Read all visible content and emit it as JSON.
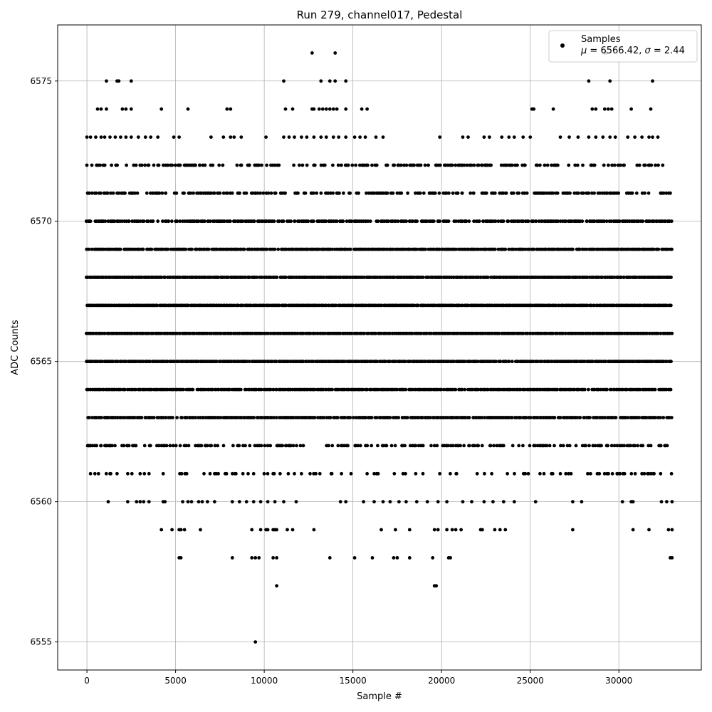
{
  "chart_data": {
    "type": "scatter",
    "title": "Run 279, channel017, Pedestal",
    "xlabel": "Sample #",
    "ylabel": "ADC Counts",
    "xlim": [
      -1650,
      34650
    ],
    "ylim": [
      6554,
      6577
    ],
    "xticks": [
      0,
      5000,
      10000,
      15000,
      20000,
      25000,
      30000
    ],
    "yticks": [
      6555,
      6560,
      6565,
      6570,
      6575
    ],
    "grid": true,
    "legend": {
      "placement": "top-right",
      "series_name": "Samples",
      "stats_mu": "6566.42",
      "stats_sigma": "2.44"
    },
    "marker_color": "#000000",
    "n_samples": 33000,
    "bands": [
      {
        "y": 6563,
        "density": 0.88,
        "gaps": []
      },
      {
        "y": 6564,
        "density": 0.95,
        "gaps": []
      },
      {
        "y": 6565,
        "density": 0.98,
        "gaps": []
      },
      {
        "y": 6566,
        "density": 1.0,
        "gaps": []
      },
      {
        "y": 6567,
        "density": 1.0,
        "gaps": []
      },
      {
        "y": 6568,
        "density": 0.97,
        "gaps": []
      },
      {
        "y": 6569,
        "density": 0.92,
        "gaps": []
      },
      {
        "y": 6570,
        "density": 0.8,
        "gaps": []
      },
      {
        "y": 6571,
        "density": 0.55,
        "gaps": []
      },
      {
        "y": 6572,
        "density": 0.4,
        "gaps": []
      },
      {
        "y": 6562,
        "density": 0.45,
        "gaps": [
          [
            12400,
            13400
          ]
        ]
      },
      {
        "y": 6561,
        "density": 0.22,
        "gaps": []
      }
    ],
    "points": [
      [
        9500,
        6555
      ],
      [
        10700,
        6557
      ],
      [
        19600,
        6557
      ],
      [
        19700,
        6557
      ],
      [
        5200,
        6558
      ],
      [
        5300,
        6558
      ],
      [
        8200,
        6558
      ],
      [
        9300,
        6558
      ],
      [
        9500,
        6558
      ],
      [
        9700,
        6558
      ],
      [
        10500,
        6558
      ],
      [
        10700,
        6558
      ],
      [
        13700,
        6558
      ],
      [
        15100,
        6558
      ],
      [
        16100,
        6558
      ],
      [
        17300,
        6558
      ],
      [
        17500,
        6558
      ],
      [
        18200,
        6558
      ],
      [
        19500,
        6558
      ],
      [
        20400,
        6558
      ],
      [
        20500,
        6558
      ],
      [
        32900,
        6558
      ],
      [
        33000,
        6558
      ],
      [
        4200,
        6559
      ],
      [
        4800,
        6559
      ],
      [
        5200,
        6559
      ],
      [
        5300,
        6559
      ],
      [
        5500,
        6559
      ],
      [
        6400,
        6559
      ],
      [
        9300,
        6559
      ],
      [
        9800,
        6559
      ],
      [
        10100,
        6559
      ],
      [
        10200,
        6559
      ],
      [
        10500,
        6559
      ],
      [
        10600,
        6559
      ],
      [
        10700,
        6559
      ],
      [
        11300,
        6559
      ],
      [
        11600,
        6559
      ],
      [
        12800,
        6559
      ],
      [
        16600,
        6559
      ],
      [
        17400,
        6559
      ],
      [
        18200,
        6559
      ],
      [
        19600,
        6559
      ],
      [
        19800,
        6559
      ],
      [
        20300,
        6559
      ],
      [
        20600,
        6559
      ],
      [
        20800,
        6559
      ],
      [
        21100,
        6559
      ],
      [
        22200,
        6559
      ],
      [
        22300,
        6559
      ],
      [
        23000,
        6559
      ],
      [
        23300,
        6559
      ],
      [
        23600,
        6559
      ],
      [
        27400,
        6559
      ],
      [
        30800,
        6559
      ],
      [
        31700,
        6559
      ],
      [
        32800,
        6559
      ],
      [
        33000,
        6559
      ],
      [
        1200,
        6560
      ],
      [
        2300,
        6560
      ],
      [
        2800,
        6560
      ],
      [
        3000,
        6560
      ],
      [
        3200,
        6560
      ],
      [
        3500,
        6560
      ],
      [
        4300,
        6560
      ],
      [
        4400,
        6560
      ],
      [
        5400,
        6560
      ],
      [
        5700,
        6560
      ],
      [
        5900,
        6560
      ],
      [
        6300,
        6560
      ],
      [
        6500,
        6560
      ],
      [
        6800,
        6560
      ],
      [
        7200,
        6560
      ],
      [
        8200,
        6560
      ],
      [
        8600,
        6560
      ],
      [
        9000,
        6560
      ],
      [
        9400,
        6560
      ],
      [
        9800,
        6560
      ],
      [
        10200,
        6560
      ],
      [
        10600,
        6560
      ],
      [
        11100,
        6560
      ],
      [
        11800,
        6560
      ],
      [
        14300,
        6560
      ],
      [
        14600,
        6560
      ],
      [
        15600,
        6560
      ],
      [
        16200,
        6560
      ],
      [
        16700,
        6560
      ],
      [
        17100,
        6560
      ],
      [
        17600,
        6560
      ],
      [
        18000,
        6560
      ],
      [
        18600,
        6560
      ],
      [
        19200,
        6560
      ],
      [
        19800,
        6560
      ],
      [
        20300,
        6560
      ],
      [
        21200,
        6560
      ],
      [
        21700,
        6560
      ],
      [
        22400,
        6560
      ],
      [
        22900,
        6560
      ],
      [
        23500,
        6560
      ],
      [
        24100,
        6560
      ],
      [
        25300,
        6560
      ],
      [
        27400,
        6560
      ],
      [
        27900,
        6560
      ],
      [
        30200,
        6560
      ],
      [
        30700,
        6560
      ],
      [
        30800,
        6560
      ],
      [
        32400,
        6560
      ],
      [
        32700,
        6560
      ],
      [
        33000,
        6560
      ],
      [
        1100,
        6575
      ],
      [
        1700,
        6575
      ],
      [
        1800,
        6575
      ],
      [
        2500,
        6575
      ],
      [
        11100,
        6575
      ],
      [
        13200,
        6575
      ],
      [
        13700,
        6575
      ],
      [
        14000,
        6575
      ],
      [
        14600,
        6575
      ],
      [
        28300,
        6575
      ],
      [
        29500,
        6575
      ],
      [
        31900,
        6575
      ],
      [
        12700,
        6576
      ],
      [
        14000,
        6576
      ],
      [
        29200,
        6576
      ],
      [
        29300,
        6576
      ],
      [
        600,
        6574
      ],
      [
        800,
        6574
      ],
      [
        1100,
        6574
      ],
      [
        2000,
        6574
      ],
      [
        2200,
        6574
      ],
      [
        2500,
        6574
      ],
      [
        4200,
        6574
      ],
      [
        5700,
        6574
      ],
      [
        7900,
        6574
      ],
      [
        8100,
        6574
      ],
      [
        11200,
        6574
      ],
      [
        11600,
        6574
      ],
      [
        12700,
        6574
      ],
      [
        12800,
        6574
      ],
      [
        13100,
        6574
      ],
      [
        13300,
        6574
      ],
      [
        13500,
        6574
      ],
      [
        13700,
        6574
      ],
      [
        13900,
        6574
      ],
      [
        14100,
        6574
      ],
      [
        14600,
        6574
      ],
      [
        15500,
        6574
      ],
      [
        15800,
        6574
      ],
      [
        25100,
        6574
      ],
      [
        25200,
        6574
      ],
      [
        26300,
        6574
      ],
      [
        28500,
        6574
      ],
      [
        28700,
        6574
      ],
      [
        29200,
        6574
      ],
      [
        29400,
        6574
      ],
      [
        29600,
        6574
      ],
      [
        30700,
        6574
      ],
      [
        31800,
        6574
      ],
      [
        0,
        6573
      ],
      [
        200,
        6573
      ],
      [
        500,
        6573
      ],
      [
        800,
        6573
      ],
      [
        1000,
        6573
      ],
      [
        1300,
        6573
      ],
      [
        1600,
        6573
      ],
      [
        1900,
        6573
      ],
      [
        2200,
        6573
      ],
      [
        2500,
        6573
      ],
      [
        2900,
        6573
      ],
      [
        3300,
        6573
      ],
      [
        3600,
        6573
      ],
      [
        4000,
        6573
      ],
      [
        4900,
        6573
      ],
      [
        5200,
        6573
      ],
      [
        7000,
        6573
      ],
      [
        7700,
        6573
      ],
      [
        8100,
        6573
      ],
      [
        8300,
        6573
      ],
      [
        8700,
        6573
      ],
      [
        10100,
        6573
      ],
      [
        11100,
        6573
      ],
      [
        11400,
        6573
      ],
      [
        11700,
        6573
      ],
      [
        12100,
        6573
      ],
      [
        12400,
        6573
      ],
      [
        12800,
        6573
      ],
      [
        13200,
        6573
      ],
      [
        13500,
        6573
      ],
      [
        13900,
        6573
      ],
      [
        14200,
        6573
      ],
      [
        14600,
        6573
      ],
      [
        15100,
        6573
      ],
      [
        15400,
        6573
      ],
      [
        15700,
        6573
      ],
      [
        16300,
        6573
      ],
      [
        16700,
        6573
      ],
      [
        19900,
        6573
      ],
      [
        21200,
        6573
      ],
      [
        21500,
        6573
      ],
      [
        22400,
        6573
      ],
      [
        22700,
        6573
      ],
      [
        23400,
        6573
      ],
      [
        23800,
        6573
      ],
      [
        24100,
        6573
      ],
      [
        24600,
        6573
      ],
      [
        25000,
        6573
      ],
      [
        26700,
        6573
      ],
      [
        27200,
        6573
      ],
      [
        27700,
        6573
      ],
      [
        28300,
        6573
      ],
      [
        28700,
        6573
      ],
      [
        29100,
        6573
      ],
      [
        29500,
        6573
      ],
      [
        29800,
        6573
      ],
      [
        30500,
        6573
      ],
      [
        30900,
        6573
      ],
      [
        31300,
        6573
      ],
      [
        31700,
        6573
      ],
      [
        31900,
        6573
      ],
      [
        32200,
        6573
      ],
      [
        200,
        6561
      ],
      [
        450,
        6561
      ],
      [
        1300,
        6561
      ],
      [
        1700,
        6561
      ],
      [
        2300,
        6561
      ],
      [
        3000,
        6561
      ],
      [
        3500,
        6561
      ],
      [
        4300,
        6561
      ],
      [
        6600,
        6561
      ],
      [
        7200,
        6561
      ],
      [
        7800,
        6561
      ],
      [
        8800,
        6561
      ],
      [
        9400,
        6561
      ],
      [
        11700,
        6561
      ],
      [
        12100,
        6561
      ],
      [
        15800,
        6561
      ],
      [
        16200,
        6561
      ],
      [
        26200,
        6561
      ],
      [
        26700,
        6561
      ],
      [
        27300,
        6561
      ],
      [
        28900,
        6561
      ],
      [
        29900,
        6561
      ],
      [
        31300,
        6561
      ],
      [
        100,
        6562
      ],
      [
        800,
        6562
      ],
      [
        1100,
        6562
      ],
      [
        29600,
        6562
      ],
      [
        30300,
        6562
      ]
    ]
  }
}
